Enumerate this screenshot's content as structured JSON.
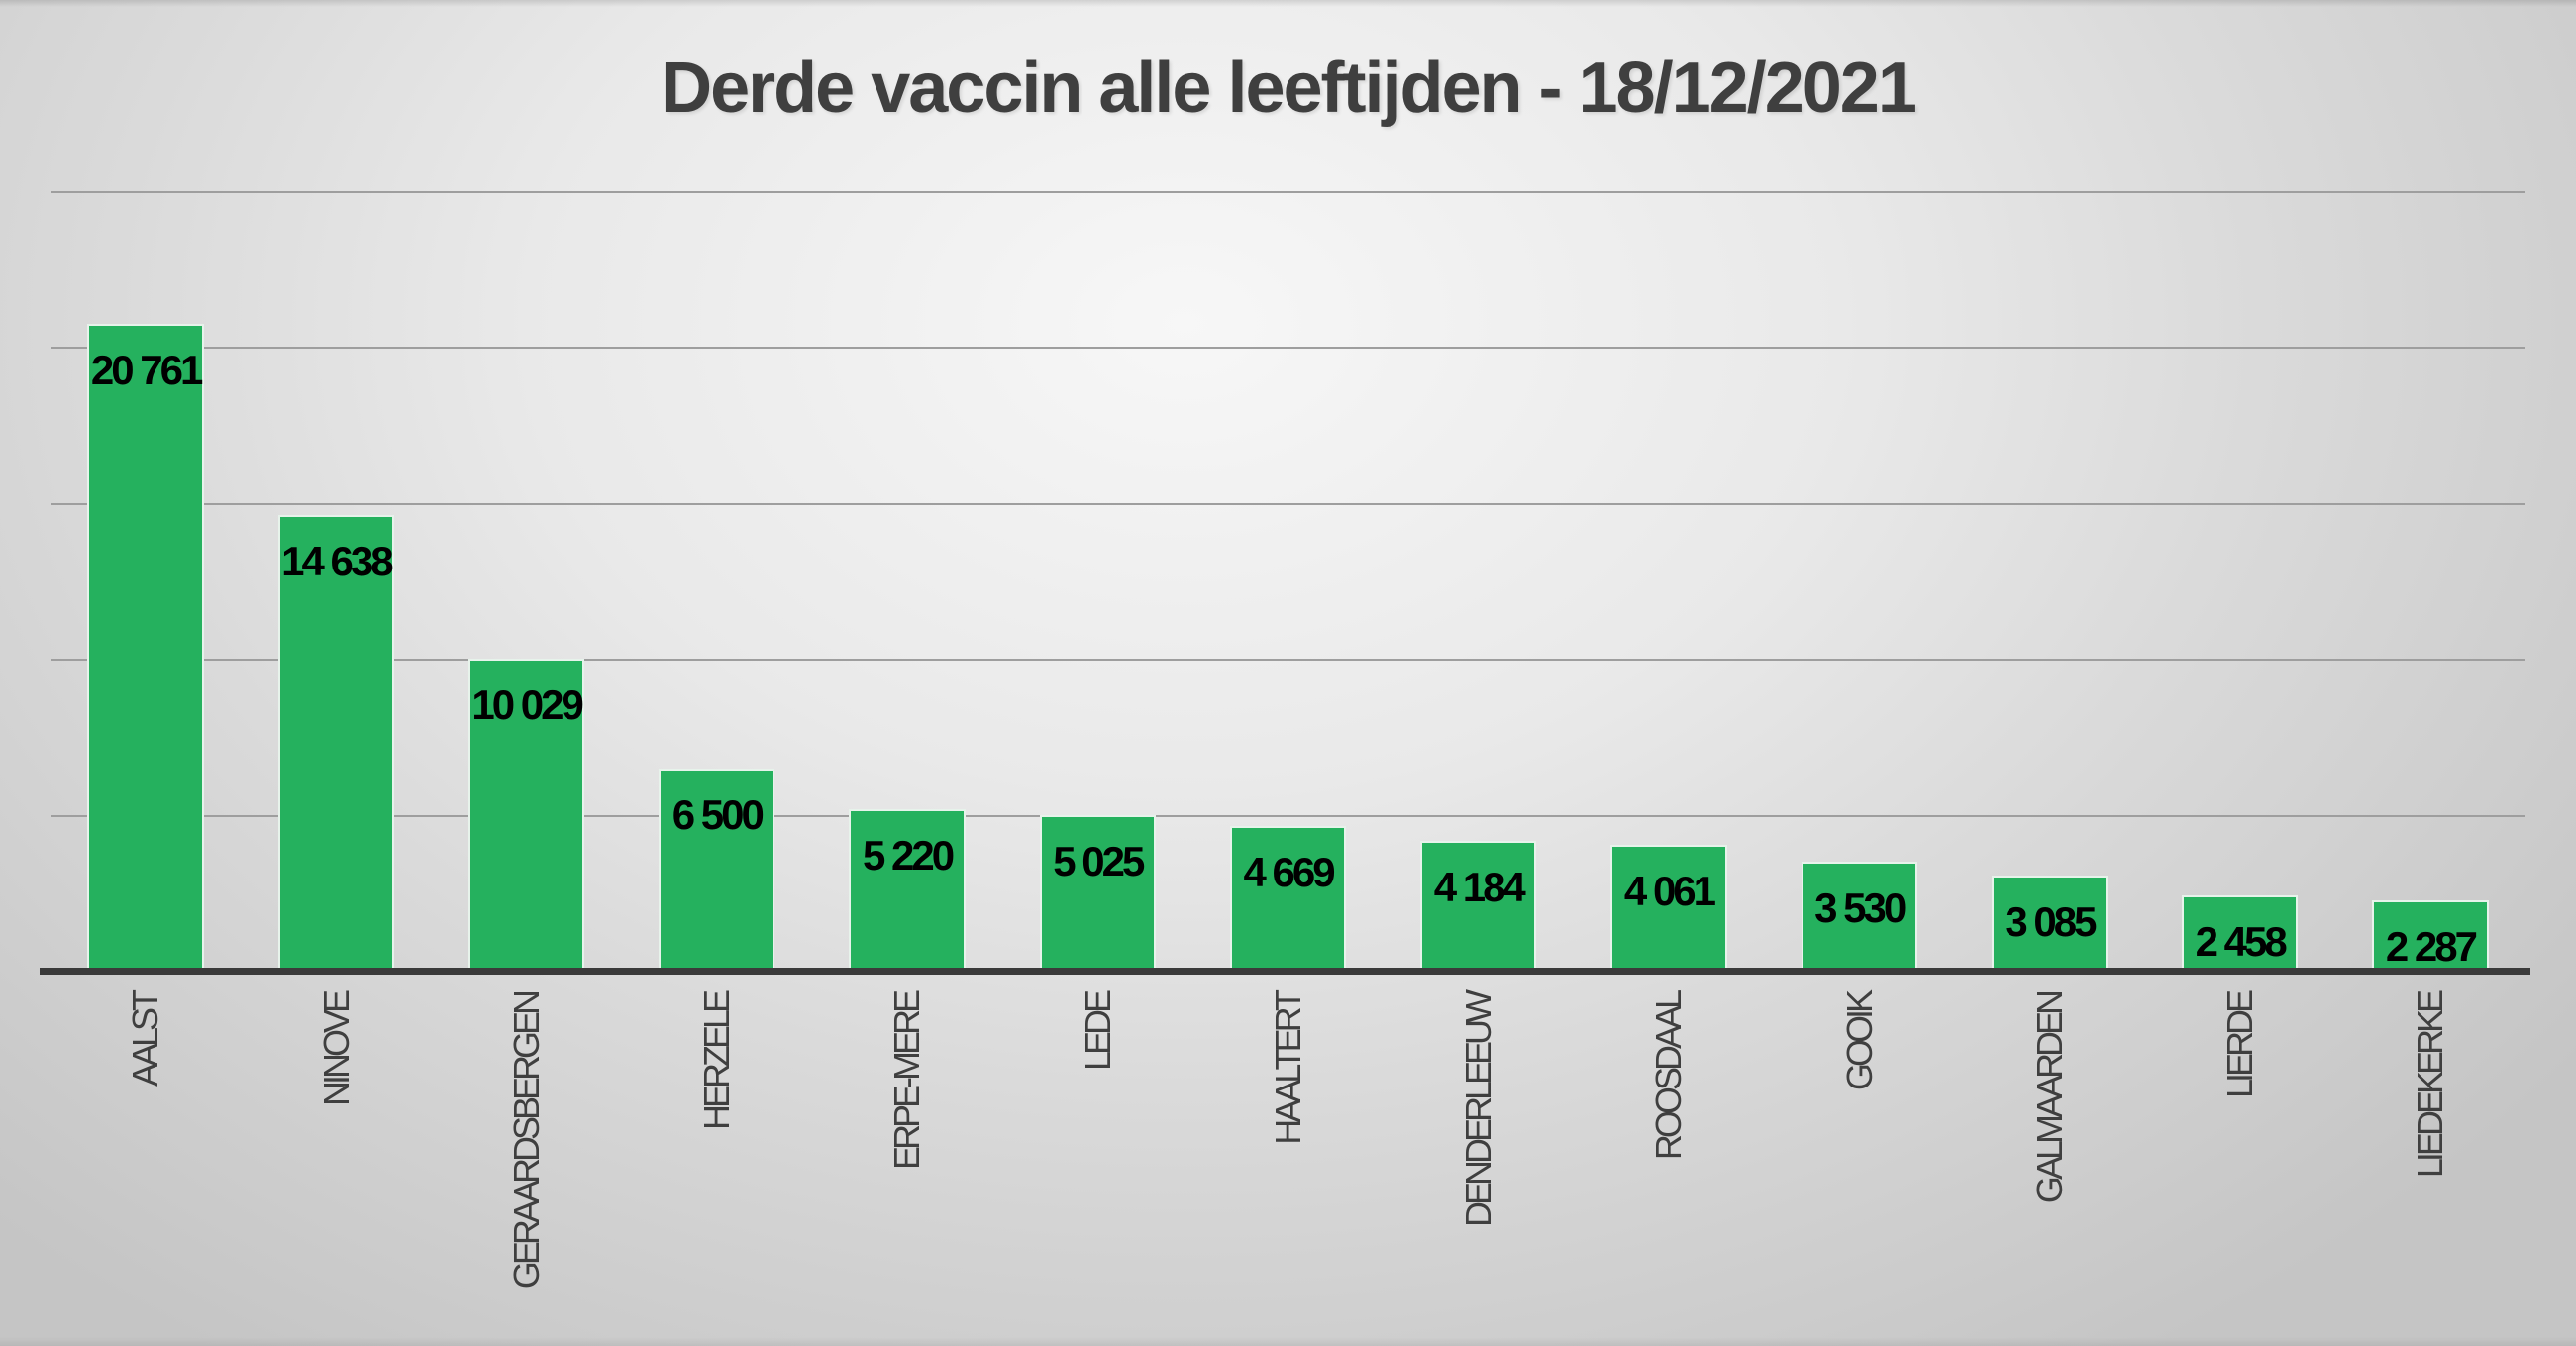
{
  "title": "Derde vaccin alle leeftijden - 18/12/2021",
  "colors": {
    "bar_fill": "#25b15e",
    "bar_border": "#e7f3eb",
    "value_label": "#000000",
    "category_label": "#3f3f3f",
    "title": "#3f3f3f",
    "gridline": "#9e9e9e",
    "axis": "#3a3a3a",
    "background_center": "#f7f7f7",
    "background_edge": "#c5c5c5"
  },
  "chart_data": {
    "type": "bar",
    "title": "Derde vaccin alle leeftijden - 18/12/2021",
    "xlabel": "",
    "ylabel": "",
    "categories": [
      "AALST",
      "NINOVE",
      "GERAARDSBERGEN",
      "HERZELE",
      "ERPE-MERE",
      "LEDE",
      "HAALTERT",
      "DENDERLEEUW",
      "ROOSDAAL",
      "GOOIK",
      "GALMAARDEN",
      "LIERDE",
      "LIEDEKERKE"
    ],
    "values": [
      20761,
      14638,
      10029,
      6500,
      5220,
      5025,
      4669,
      4184,
      4061,
      3530,
      3085,
      2458,
      2287
    ],
    "value_labels": [
      "20 761",
      "14 638",
      "10 029",
      "6 500",
      "5 220",
      "5 025",
      "4 669",
      "4 184",
      "4 061",
      "3 530",
      "3 085",
      "2 458",
      "2 287"
    ],
    "ylim": [
      0,
      25000
    ],
    "gridline_step": 5000,
    "grid": true,
    "y_axis_tick_labels_visible": false,
    "legend": false,
    "data_label_position": "inside-end",
    "category_label_rotation_deg": -90
  }
}
